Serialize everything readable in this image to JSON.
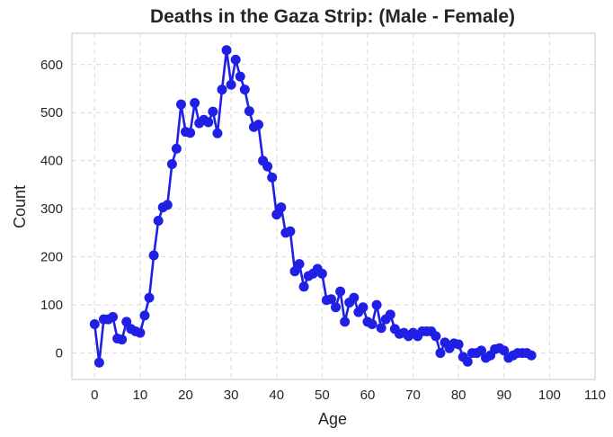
{
  "chart_data": {
    "type": "line",
    "title": "Deaths in the Gaza Strip: (Male - Female)",
    "xlabel": "Age",
    "ylabel": "Count",
    "xlim": [
      -5,
      110
    ],
    "ylim": [
      -55,
      665
    ],
    "xticks": [
      0,
      10,
      20,
      30,
      40,
      50,
      60,
      70,
      80,
      90,
      100,
      110
    ],
    "yticks": [
      0,
      100,
      200,
      300,
      400,
      500,
      600
    ],
    "grid": true,
    "series_color": "#1f1fe6",
    "x": [
      0,
      1,
      2,
      3,
      4,
      5,
      6,
      7,
      8,
      9,
      10,
      11,
      12,
      13,
      14,
      15,
      16,
      17,
      18,
      19,
      20,
      21,
      22,
      23,
      24,
      25,
      26,
      27,
      28,
      29,
      30,
      31,
      32,
      33,
      34,
      35,
      36,
      37,
      38,
      39,
      40,
      41,
      42,
      43,
      44,
      45,
      46,
      47,
      48,
      49,
      50,
      51,
      52,
      53,
      54,
      55,
      56,
      57,
      58,
      59,
      60,
      61,
      62,
      63,
      64,
      65,
      66,
      67,
      68,
      69,
      70,
      71,
      72,
      73,
      74,
      75,
      76,
      77,
      78,
      79,
      80,
      81,
      82,
      83,
      84,
      85,
      86,
      87,
      88,
      89,
      90,
      91,
      92,
      93,
      94,
      95,
      96
    ],
    "y": [
      60,
      -20,
      70,
      70,
      75,
      30,
      28,
      65,
      50,
      45,
      42,
      78,
      115,
      203,
      275,
      303,
      308,
      393,
      425,
      517,
      460,
      458,
      520,
      478,
      485,
      480,
      502,
      457,
      548,
      630,
      558,
      610,
      575,
      548,
      503,
      470,
      475,
      400,
      388,
      365,
      288,
      303,
      250,
      253,
      170,
      185,
      138,
      160,
      165,
      175,
      165,
      110,
      112,
      95,
      128,
      65,
      105,
      115,
      85,
      95,
      65,
      60,
      100,
      52,
      70,
      80,
      50,
      40,
      42,
      35,
      42,
      35,
      45,
      45,
      45,
      35,
      0,
      22,
      10,
      20,
      18,
      -8,
      -18,
      0,
      0,
      5,
      -10,
      -5,
      8,
      10,
      5,
      -10,
      -5,
      0,
      0,
      0,
      -5
    ]
  }
}
